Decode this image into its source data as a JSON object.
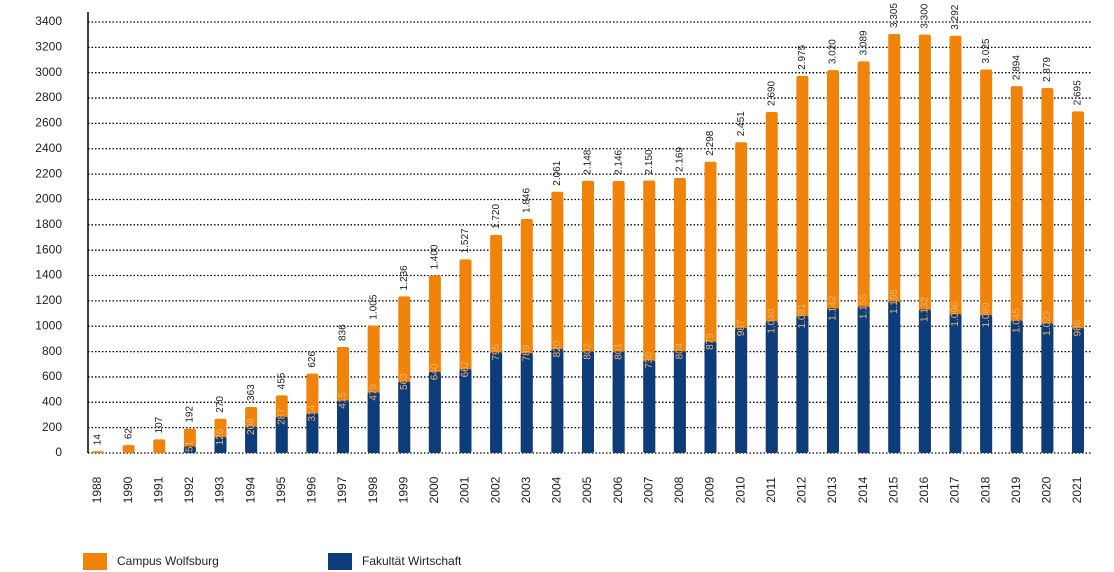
{
  "chart_data": {
    "type": "bar",
    "categories": [
      "1988",
      "1990",
      "1991",
      "1992",
      "1993",
      "1994",
      "1995",
      "1996",
      "1997",
      "1998",
      "1999",
      "2000",
      "2001",
      "2002",
      "2003",
      "2004",
      "2005",
      "2006",
      "2007",
      "2008",
      "2009",
      "2010",
      "2011",
      "2012",
      "2013",
      "2014",
      "2015",
      "2016",
      "2017",
      "2018",
      "2019",
      "2020",
      "2021"
    ],
    "series": [
      {
        "name": "Campus Wolfsburg",
        "color": "#f0830a",
        "values": [
          14,
          62,
          107,
          192,
          270,
          363,
          455,
          626,
          836,
          1005,
          1236,
          1400,
          1527,
          1720,
          1846,
          2061,
          2148,
          2146,
          2150,
          2169,
          2298,
          2451,
          2690,
          2975,
          3020,
          3089,
          3305,
          3300,
          3292,
          3025,
          2894,
          2879,
          2695
        ],
        "value_labels": [
          "14",
          "62",
          "107",
          "192",
          "270",
          "363",
          "455",
          "626",
          "836",
          "1.005",
          "1.236",
          "1.400",
          "1.527",
          "1.720",
          "1.846",
          "2.061",
          "2.148",
          "2.146",
          "2.150",
          "2.169",
          "2.298",
          "2.451",
          "2.690",
          "2.975",
          "3.020",
          "3.089",
          "3.305",
          "3.300",
          "3.292",
          "3.025",
          "2.894",
          "2.879",
          "2.695"
        ]
      },
      {
        "name": "Fakultät Wirtschaft",
        "color": "#0d3c7a",
        "values": [
          null,
          null,
          null,
          51,
          126,
          208,
          287,
          314,
          415,
          479,
          563,
          640,
          662,
          795,
          789,
          820,
          802,
          801,
          730,
          804,
          879,
          987,
          1040,
          1081,
          1142,
          1155,
          1195,
          1132,
          1096,
          1089,
          1045,
          1023,
          986
        ],
        "value_labels": [
          null,
          null,
          null,
          "51",
          "126",
          "208",
          "287",
          "314",
          "415",
          "479",
          "563",
          "640",
          "662",
          "795",
          "789",
          "820",
          "802",
          "801",
          "730",
          "804",
          "879",
          "987",
          "1.040",
          "1.081",
          "1.142",
          "1.155",
          "1.195",
          "1.132",
          "1.096",
          "1.089",
          "1.045",
          "1.023",
          "986"
        ]
      }
    ],
    "ylim": [
      0,
      3400
    ],
    "yticks": [
      0,
      200,
      400,
      600,
      800,
      1000,
      1200,
      1400,
      1600,
      1800,
      2000,
      2200,
      2400,
      2600,
      2800,
      3000,
      3200,
      3400
    ],
    "grid": true,
    "legend": "bottom-left"
  }
}
